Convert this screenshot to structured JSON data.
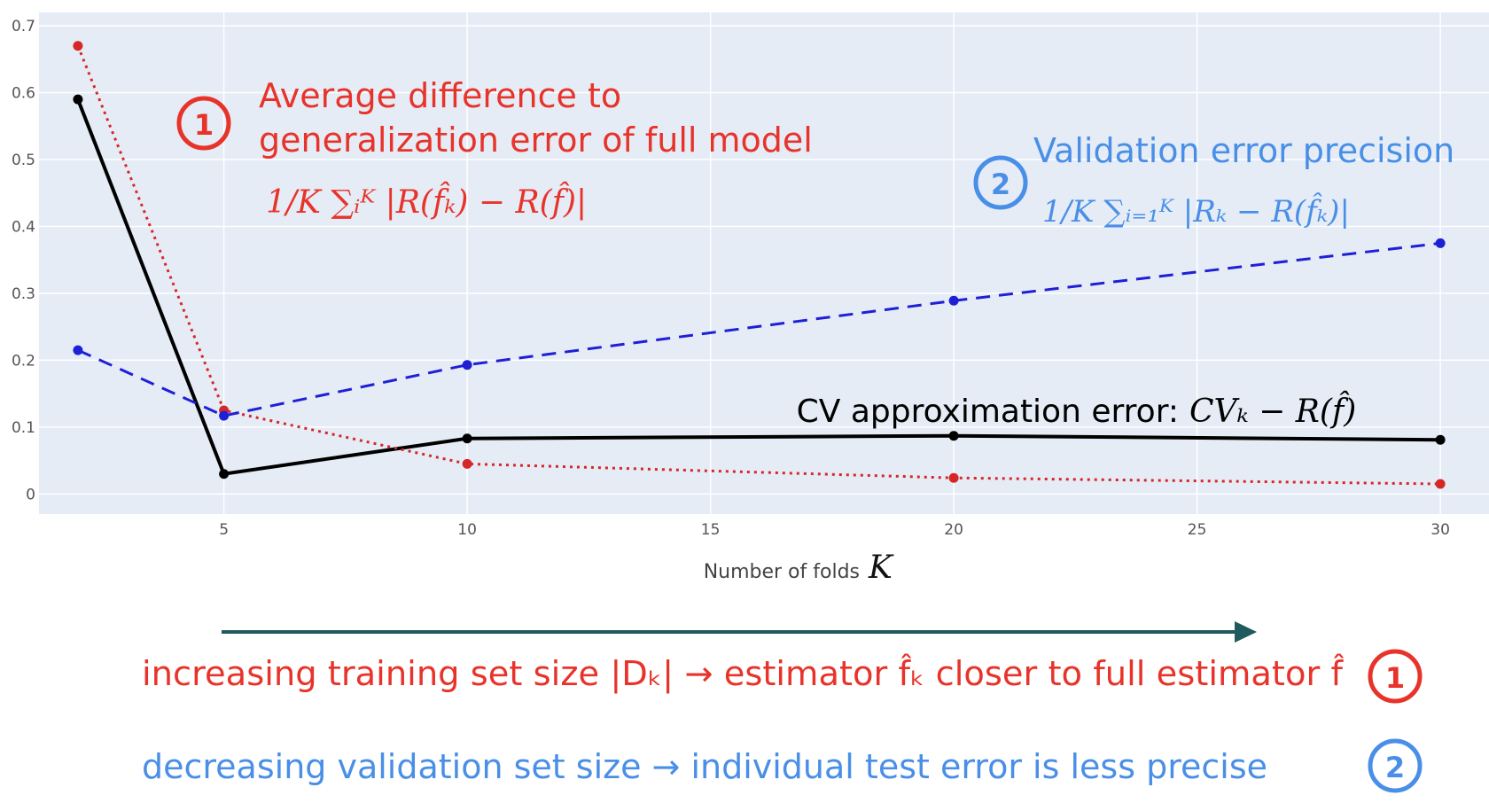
{
  "chart_data": {
    "type": "line",
    "title": "",
    "xlabel": "Number of folds",
    "xlabel_symbol": "K",
    "ylabel": "",
    "xlim": [
      1.2,
      31
    ],
    "ylim": [
      -0.03,
      0.72
    ],
    "x_ticks": [
      5,
      10,
      15,
      20,
      25,
      30
    ],
    "y_ticks": [
      0,
      0.1,
      0.2,
      0.3,
      0.4,
      0.5,
      0.6,
      0.7
    ],
    "y_tick_labels": [
      "0",
      "0.1",
      "0.2",
      "0.3",
      "0.4",
      "0.5",
      "0.6",
      "0.7"
    ],
    "grid": true,
    "legend": "none",
    "background": "#e5ecf6",
    "series": [
      {
        "key": "cv_error",
        "color": "#000000",
        "dash": "solid",
        "x": [
          2,
          5,
          10,
          20,
          30
        ],
        "y": [
          0.59,
          0.03,
          0.083,
          0.087,
          0.081
        ]
      },
      {
        "key": "avg_diff",
        "color": "#d62728",
        "dash": "dotted",
        "x": [
          2,
          5,
          10,
          20,
          30
        ],
        "y": [
          0.67,
          0.125,
          0.045,
          0.024,
          0.015
        ]
      },
      {
        "key": "val_precision",
        "color": "#1f1fd6",
        "dash": "dashed",
        "x": [
          2,
          5,
          10,
          20,
          30
        ],
        "y": [
          0.215,
          0.117,
          0.193,
          0.289,
          0.375
        ]
      }
    ]
  },
  "annotations": {
    "avg_diff": {
      "number": "1",
      "line1": "Average difference to",
      "line2": "generalization error of full model",
      "formula": "1/K ∑ᵢᴷ |R(f̂ₖ) − R(f̂)|",
      "color": "#e8332a"
    },
    "val_precision": {
      "number": "2",
      "line1": "Validation error precision",
      "formula": "1/K ∑ᵢ₌₁ᴷ |Rₖ − R(f̂ₖ)|",
      "color": "#4a8fe7"
    },
    "cv_error": {
      "text": "CV approximation error:",
      "formula": "CVₖ − R(f̂)",
      "color": "#000000"
    }
  },
  "bottom": {
    "arrow_color": "#1f5a5e",
    "line1": {
      "text": "increasing training set size |Dₖ| → estimator f̂ₖ closer to full estimator f̂",
      "number": "1",
      "color": "#e8332a"
    },
    "line2": {
      "text": "decreasing validation set size → individual test error is less precise",
      "number": "2",
      "color": "#4a8fe7"
    }
  }
}
